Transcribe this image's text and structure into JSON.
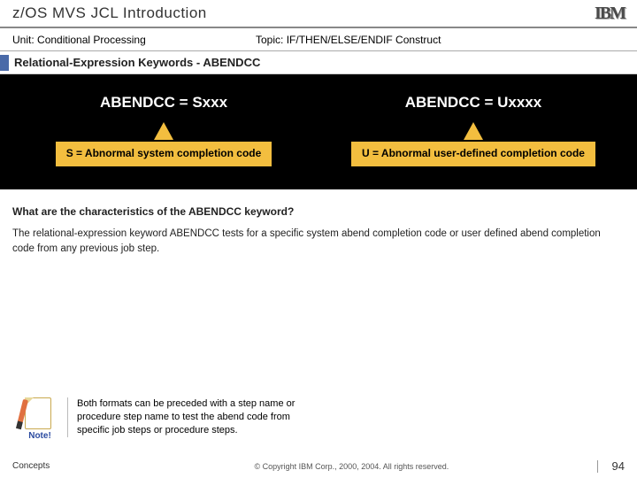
{
  "header": {
    "title": "z/OS MVS JCL Introduction",
    "logo": "IBM"
  },
  "subheader": {
    "unit_label": "Unit:",
    "unit": "Conditional Processing",
    "topic_label": "Topic:",
    "topic": "IF/THEN/ELSE/ENDIF Construct"
  },
  "section_title": "Relational-Expression Keywords - ABENDCC",
  "panel": {
    "left_formula": "ABENDCC = Sxxx",
    "right_formula": "ABENDCC = Uxxxx",
    "left_callout": "S = Abnormal system completion code",
    "right_callout": "U = Abnormal user-defined completion code",
    "formula_color": "#ffffff",
    "callout_bg": "#f3be3f",
    "panel_bg": "#000000"
  },
  "question": "What are the characteristics of the ABENDCC keyword?",
  "answer": "The relational-expression keyword ABENDCC tests for a specific system abend completion code or user defined abend completion code from any previous job step.",
  "note": {
    "label": "Note!",
    "text": "Both formats can be preceded with a step name or procedure step name to test the abend code from specific job steps or procedure steps."
  },
  "footer": {
    "left": "Concepts",
    "copyright": "© Copyright IBM Corp., 2000, 2004. All rights reserved.",
    "page": "94"
  }
}
